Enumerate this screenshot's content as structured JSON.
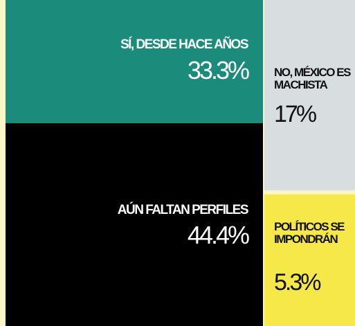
{
  "chart_data": {
    "type": "treemap",
    "unit": "%",
    "items": [
      {
        "label": "SÍ, DESDE HACE AÑOS",
        "value": 33.3,
        "value_text": "33.3%",
        "color": "#1b8b7c",
        "text_color": "#ffffff"
      },
      {
        "label": "AÚN FALTAN PERFILES",
        "value": 44.4,
        "value_text": "44.4%",
        "color": "#000000",
        "text_color": "#ffffff"
      },
      {
        "label": "NO, MÉXICO ES MACHISTA",
        "value": 17,
        "value_text": "17%",
        "color": "#d8dde0",
        "text_color": "#111111"
      },
      {
        "label": "POLÍTICOS SE IMPONDRÁN",
        "value": 5.3,
        "value_text": "5.3%",
        "color": "#f7e84a",
        "text_color": "#111111"
      }
    ]
  }
}
